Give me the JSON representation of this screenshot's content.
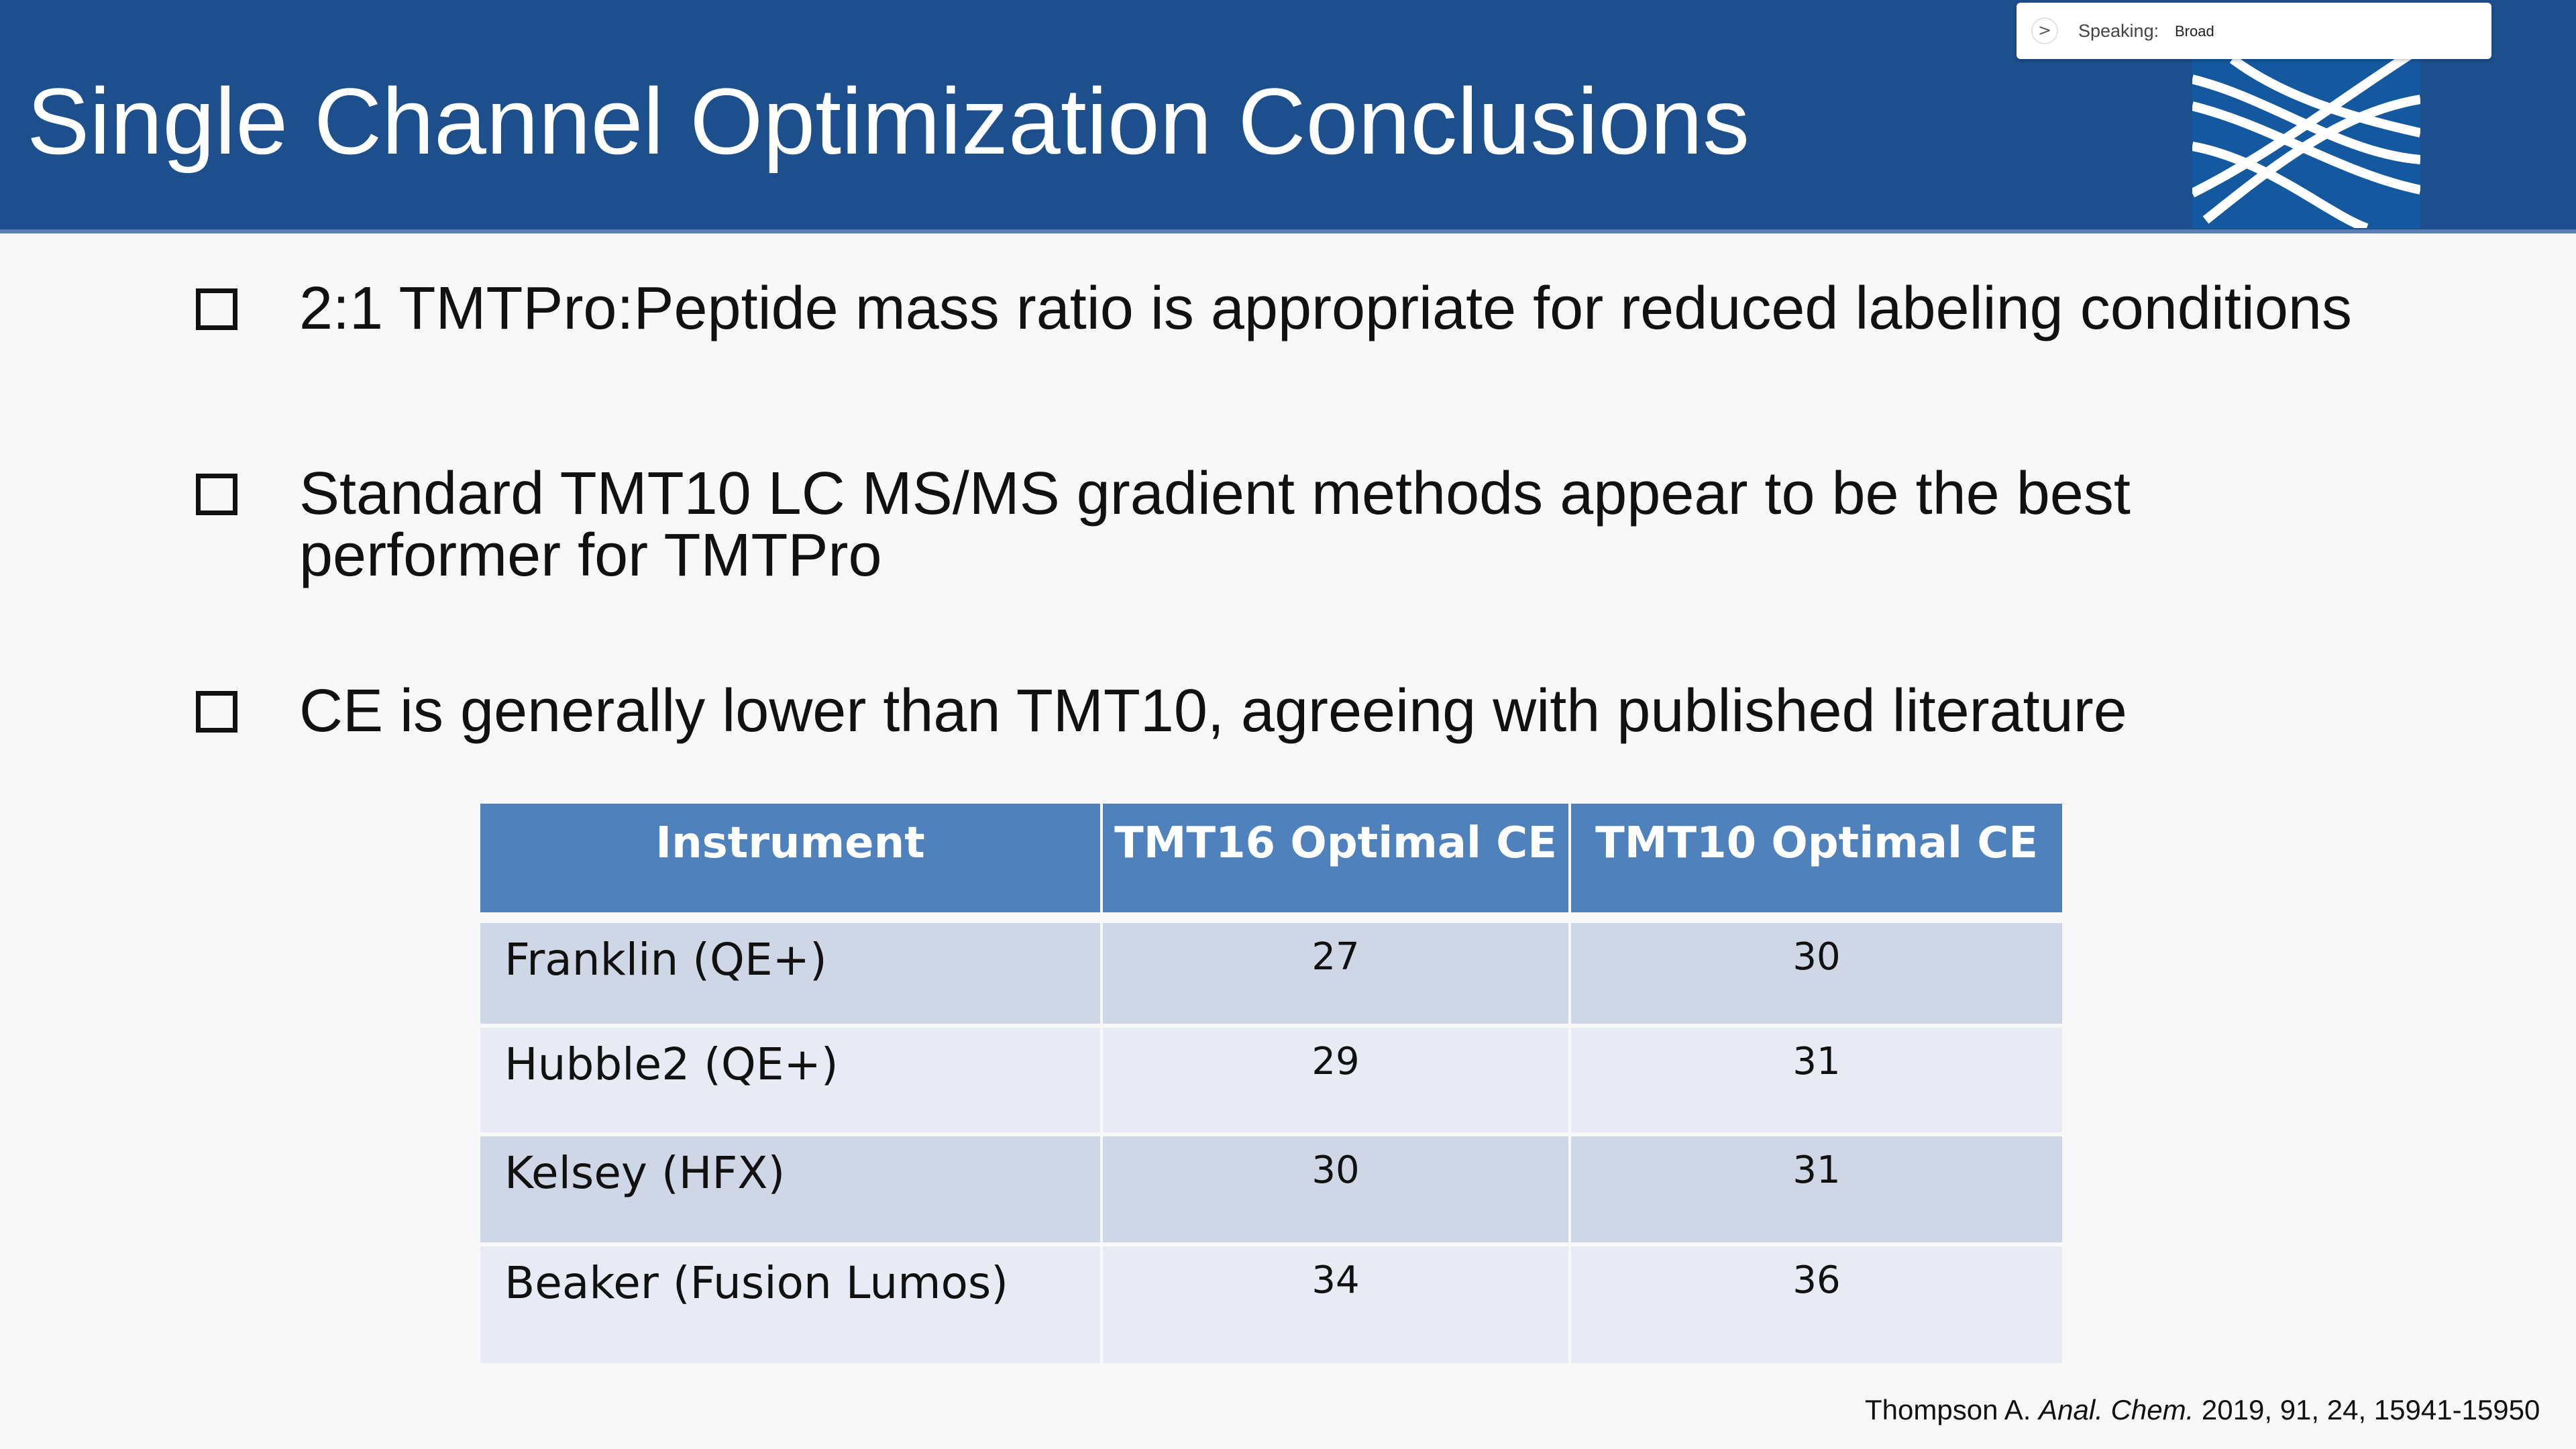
{
  "header": {
    "title": "Single Channel Optimization Conclusions"
  },
  "speaking": {
    "label": "Speaking:",
    "name": "Broad",
    "chevron": ">"
  },
  "bullets": [
    {
      "text": "2:1 TMTPro:Peptide mass ratio is appropriate for reduced labeling conditions",
      "icon": "checkbox-icon"
    },
    {
      "text": "Standard TMT10 LC MS/MS gradient methods appear to be the best performer for TMTPro",
      "icon": "checkbox-icon"
    },
    {
      "text": "CE is generally lower than TMT10, agreeing with published literature",
      "icon": "checkbox-icon"
    }
  ],
  "table": {
    "headers": [
      "Instrument",
      "TMT16 Optimal CE",
      "TMT10 Optimal CE"
    ],
    "rows": [
      [
        "Franklin (QE+)",
        "27",
        "30"
      ],
      [
        "Hubble2 (QE+)",
        "29",
        "31"
      ],
      [
        "Kelsey (HFX)",
        "30",
        "31"
      ],
      [
        "Beaker (Fusion Lumos)",
        "34",
        "36"
      ]
    ]
  },
  "citation": {
    "author": "Thompson A.",
    "journal": "Anal. Chem.",
    "details": "2019, 91, 24, 15941-15950"
  },
  "colors": {
    "header_bg": "#1d4f8d",
    "table_header": "#4f81bd",
    "row_dark": "#cfd7e6",
    "row_light": "#e8ebf3"
  }
}
